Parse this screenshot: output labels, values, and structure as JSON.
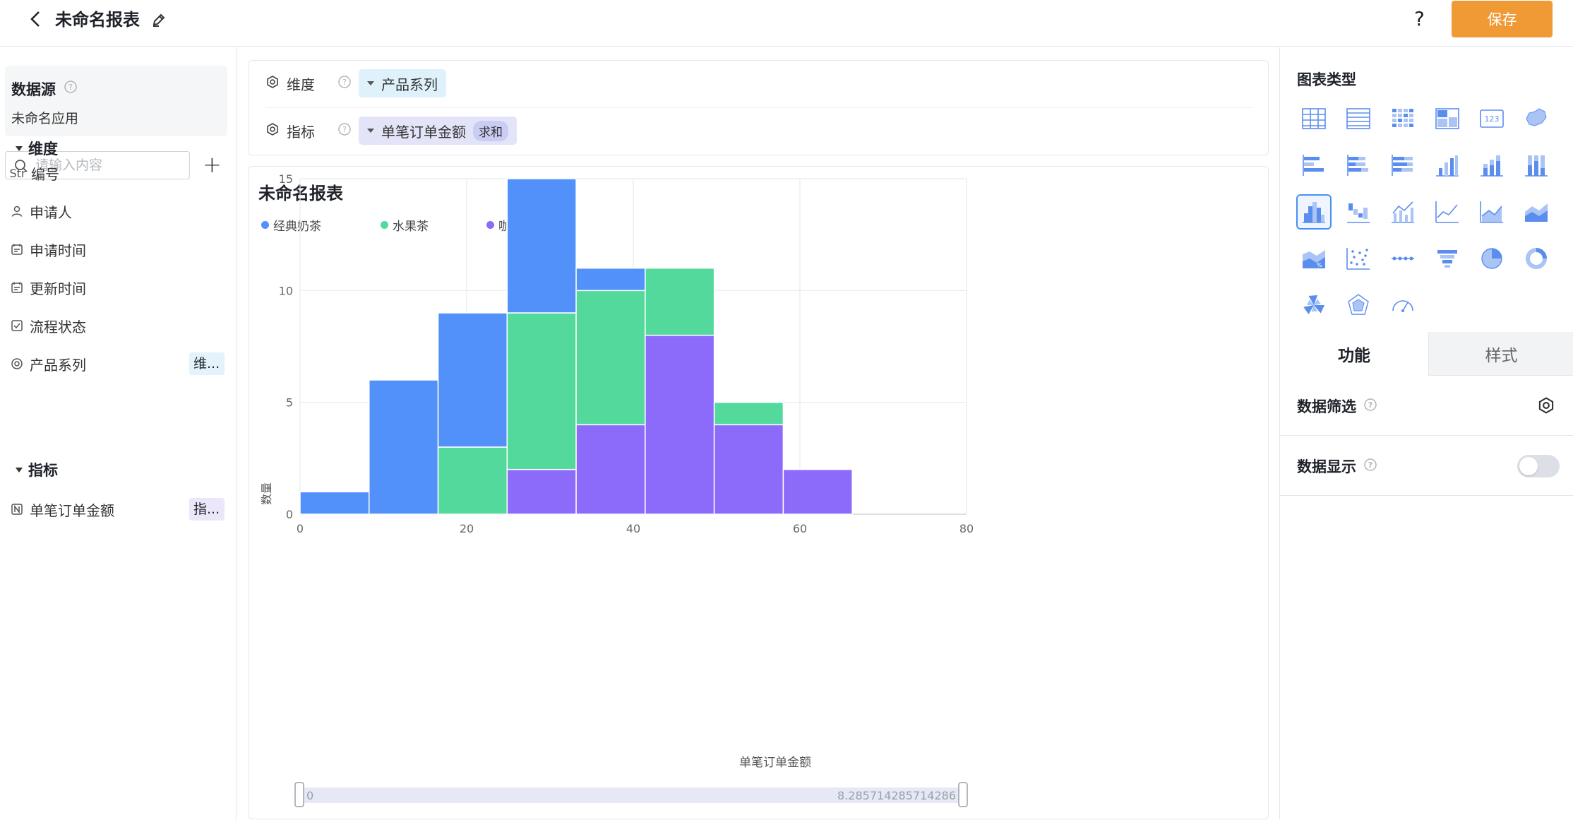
{
  "header": {
    "title": "未命名报表",
    "help_label": "?",
    "save_label": "保存"
  },
  "left": {
    "datasource_title": "数据源",
    "datasource_app": "未命名应用",
    "search_placeholder": "请输入内容",
    "add_label": "+",
    "dimension_group": "维度",
    "measure_group": "指标",
    "dimension_fields": [
      {
        "icon": "Str",
        "label": "编号"
      },
      {
        "icon": "person-icon",
        "label": "申请人"
      },
      {
        "icon": "calendar-icon",
        "label": "申请时间"
      },
      {
        "icon": "calendar-icon",
        "label": "更新时间"
      },
      {
        "icon": "checkbox-icon",
        "label": "流程状态"
      },
      {
        "icon": "radio-icon",
        "label": "产品系列",
        "tag": "维..."
      }
    ],
    "measure_fields": [
      {
        "icon": "number-icon",
        "label": "单笔订单金额",
        "tag": "指..."
      }
    ]
  },
  "config": {
    "dimension_label": "维度",
    "dimension_value": "产品系列",
    "measure_label": "指标",
    "measure_value": "单笔订单金额",
    "measure_agg": "求和"
  },
  "chart_card": {
    "title": "未命名报表",
    "slider_start": "0",
    "slider_end": "8.285714285714286"
  },
  "right": {
    "chart_types_title": "图表类型",
    "tab_function": "功能",
    "tab_style": "样式",
    "filter_label": "数据筛选",
    "display_label": "数据显示",
    "display_enabled": false,
    "chart_type_icons": [
      "table-icon",
      "detail-table-icon",
      "cross-table-icon",
      "pivot-icon",
      "kpi-123-icon",
      "china-map-icon",
      "horizontal-bar-icon",
      "stacked-horizontal-bar-icon",
      "percent-horizontal-bar-icon",
      "column-icon",
      "stacked-column-icon",
      "percent-column-icon",
      "histogram-icon",
      "waterfall-icon",
      "combo-line-column-icon",
      "line-icon",
      "area-icon",
      "stacked-area-icon",
      "percent-area-icon",
      "scatter-icon",
      "dot-line-icon",
      "funnel-icon",
      "pie-icon",
      "donut-icon",
      "rose-icon",
      "radar-icon",
      "gauge-icon"
    ],
    "selected_chart_type": "histogram-icon"
  },
  "chart_data": {
    "type": "bar",
    "stacked": true,
    "histogram": true,
    "bin_width": 8.285714285714286,
    "x": [
      0,
      8.2857,
      16.5714,
      24.8571,
      33.1429,
      41.4286,
      49.7143,
      58
    ],
    "xlabel": "单笔订单金额",
    "ylabel": "数量",
    "xlim": [
      0,
      80
    ],
    "ylim": [
      0,
      15
    ],
    "xticks": [
      0,
      20,
      40,
      60,
      80
    ],
    "yticks": [
      0,
      5,
      10,
      15
    ],
    "grid": true,
    "legend_position": "top-left",
    "series": [
      {
        "name": "咖啡",
        "color": "#8c6bfa",
        "values": [
          0,
          0,
          0,
          2,
          4,
          8,
          4,
          2
        ]
      },
      {
        "name": "水果茶",
        "color": "#52d99b",
        "values": [
          0,
          0,
          3,
          7,
          6,
          3,
          1,
          0
        ]
      },
      {
        "name": "经典奶茶",
        "color": "#5291fa",
        "values": [
          1,
          6,
          6,
          6,
          1,
          0,
          0,
          0
        ]
      }
    ],
    "legend_order": [
      "经典奶茶",
      "水果茶",
      "咖啡"
    ]
  }
}
